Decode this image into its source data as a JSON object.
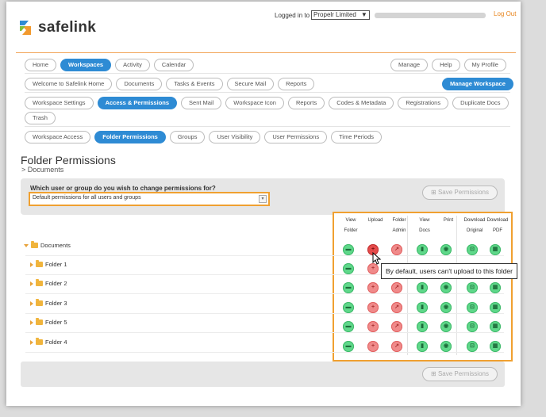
{
  "brand": {
    "name": "safelink"
  },
  "login": {
    "prefix": "Logged in to",
    "account": "Propelr Limited",
    "logout": "Log Out"
  },
  "nav_main": {
    "items": [
      "Home",
      "Workspaces",
      "Activity",
      "Calendar"
    ],
    "right": [
      "Manage",
      "Help",
      "My Profile"
    ]
  },
  "nav_sub": {
    "items": [
      "Welcome to Safelink Home",
      "Documents",
      "Tasks & Events",
      "Secure Mail",
      "Reports"
    ],
    "manage_button": "Manage Workspace"
  },
  "nav_settings": {
    "items": [
      "Workspace Settings",
      "Access & Permissions",
      "Sent Mail",
      "Workspace Icon",
      "Reports",
      "Codes & Metadata",
      "Registrations",
      "Duplicate Docs",
      "Trash"
    ]
  },
  "nav_access": {
    "items": [
      "Workspace Access",
      "Folder Permissions",
      "Groups",
      "User Visibility",
      "User Permissions",
      "Time Periods"
    ]
  },
  "page": {
    "title": "Folder Permissions",
    "breadcrumb": "> Documents"
  },
  "permissions_form": {
    "question": "Which user or group do you wish to change permissions for?",
    "selected": "Default permissions for all users and groups",
    "save_label": "Save Permissions"
  },
  "columns": [
    [
      "View",
      "Folder"
    ],
    [
      "Upload",
      ""
    ],
    [
      "Folder",
      "Admin"
    ],
    [
      "View",
      "Docs"
    ],
    [
      "Print",
      ""
    ],
    [
      "Download",
      "Original"
    ],
    [
      "Download",
      "PDF"
    ]
  ],
  "tree": [
    {
      "name": "Documents",
      "expanded": true,
      "level": 0
    },
    {
      "name": "Folder 1",
      "expanded": false,
      "level": 1
    },
    {
      "name": "Folder 2",
      "expanded": false,
      "level": 1
    },
    {
      "name": "Folder 3",
      "expanded": false,
      "level": 1
    },
    {
      "name": "Folder 5",
      "expanded": false,
      "level": 1
    },
    {
      "name": "Folder 4",
      "expanded": false,
      "level": 1
    }
  ],
  "permission_states": [
    "allowed",
    "denied",
    "denied",
    "allowed",
    "allowed",
    "allowed",
    "allowed"
  ],
  "tooltip": "By default, users can't upload to this folder",
  "colors": {
    "accent": "#2e8bd4",
    "highlight": "#f0a030",
    "allowed": "#5fd88a",
    "denied": "#f08a8a"
  }
}
